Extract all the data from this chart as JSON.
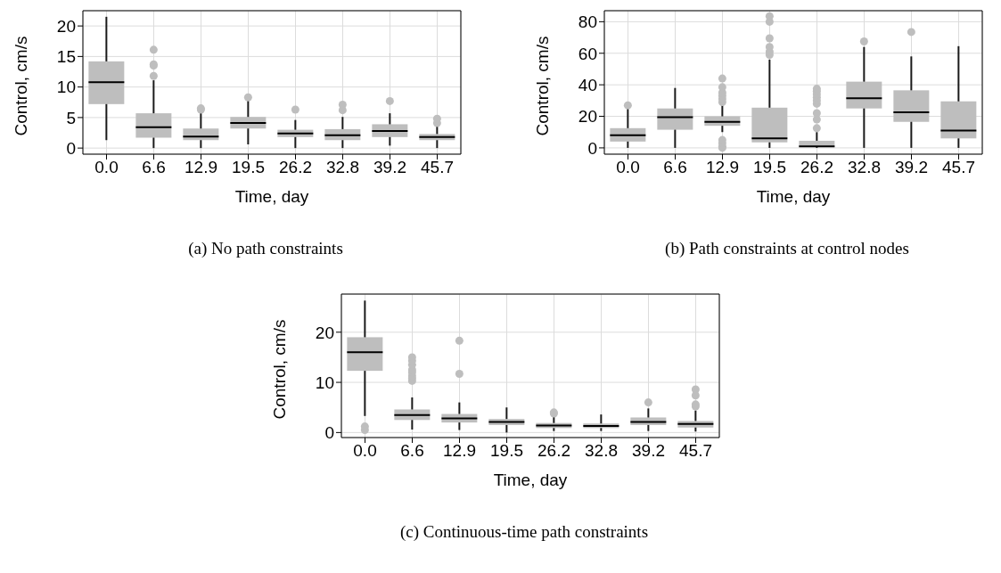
{
  "chart_data": [
    {
      "type": "box",
      "xlabel": "Time, day",
      "ylabel": "Control, cm/s",
      "annotations": [
        "(a) No path constraints"
      ],
      "categories": [
        "0.0",
        "6.6",
        "12.9",
        "19.5",
        "26.2",
        "32.8",
        "39.2",
        "45.7"
      ],
      "color": "#bebebe",
      "grid": true,
      "ylim": [
        -1,
        22.5
      ],
      "yticks": [
        0,
        5,
        10,
        15,
        20
      ],
      "boxes": [
        {
          "low": 1.3,
          "q1": 7.2,
          "median": 10.8,
          "q3": 14.2,
          "high": 21.5
        },
        {
          "low": 0,
          "q1": 1.7,
          "median": 3.4,
          "q3": 5.7,
          "high": 11.1,
          "outliers": [
            11.8,
            13.5,
            13.7,
            16.1
          ]
        },
        {
          "low": 0,
          "q1": 1.3,
          "median": 1.9,
          "q3": 3.2,
          "high": 6.0,
          "outliers": [
            6.3,
            6.5
          ]
        },
        {
          "low": 0.6,
          "q1": 3.2,
          "median": 4.1,
          "q3": 5.1,
          "high": 7.8,
          "outliers": [
            8.3
          ]
        },
        {
          "low": 0,
          "q1": 1.8,
          "median": 2.4,
          "q3": 3.0,
          "high": 4.6,
          "outliers": [
            6.3
          ]
        },
        {
          "low": 0,
          "q1": 1.3,
          "median": 2.1,
          "q3": 3.1,
          "high": 5.1,
          "outliers": [
            6.2,
            7.1
          ]
        },
        {
          "low": 0.4,
          "q1": 1.8,
          "median": 2.8,
          "q3": 3.9,
          "high": 5.7,
          "outliers": [
            7.7
          ]
        },
        {
          "low": 0,
          "q1": 1.3,
          "median": 1.8,
          "q3": 2.3,
          "high": 3.9,
          "outliers": [
            4.1,
            4.8
          ]
        }
      ]
    },
    {
      "type": "box",
      "xlabel": "Time, day",
      "ylabel": "Control, cm/s",
      "annotations": [
        "(b) Path constraints at control nodes"
      ],
      "categories": [
        "0.0",
        "6.6",
        "12.9",
        "19.5",
        "26.2",
        "32.8",
        "39.2",
        "45.7"
      ],
      "color": "#bebebe",
      "grid": true,
      "ylim": [
        -4,
        87
      ],
      "yticks": [
        0,
        20,
        40,
        60,
        80
      ],
      "boxes": [
        {
          "low": 0,
          "q1": 4,
          "median": 8,
          "q3": 12.5,
          "high": 26,
          "outliers": [
            27
          ]
        },
        {
          "low": 0,
          "q1": 11.5,
          "median": 19.5,
          "q3": 25,
          "high": 38
        },
        {
          "low": 10,
          "q1": 14,
          "median": 16.5,
          "q3": 20,
          "high": 27,
          "outliers": [
            0,
            1,
            3,
            5,
            29,
            31,
            33,
            35,
            38.5,
            44
          ]
        },
        {
          "low": 0,
          "q1": 3.5,
          "median": 6,
          "q3": 25.5,
          "high": 56,
          "outliers": [
            59,
            61,
            64,
            69.5,
            80,
            83.5
          ]
        },
        {
          "low": 0,
          "q1": 0.5,
          "median": 1,
          "q3": 4.5,
          "high": 10,
          "outliers": [
            12.5,
            18,
            22,
            28,
            30,
            32,
            34,
            36,
            37.5
          ]
        },
        {
          "low": 0,
          "q1": 25,
          "median": 31.5,
          "q3": 42,
          "high": 64,
          "outliers": [
            67.5
          ]
        },
        {
          "low": 0,
          "q1": 16.5,
          "median": 22.5,
          "q3": 36.5,
          "high": 58,
          "outliers": [
            73.5
          ]
        },
        {
          "low": 0,
          "q1": 6,
          "median": 11,
          "q3": 29.5,
          "high": 64.5
        }
      ]
    },
    {
      "type": "box",
      "xlabel": "Time, day",
      "ylabel": "Control, cm/s",
      "annotations": [
        "(c) Continuous-time path constraints"
      ],
      "categories": [
        "0.0",
        "6.6",
        "12.9",
        "19.5",
        "26.2",
        "32.8",
        "39.2",
        "45.7"
      ],
      "color": "#bebebe",
      "grid": true,
      "ylim": [
        -1,
        27.6
      ],
      "yticks": [
        0,
        10,
        20
      ],
      "boxes": [
        {
          "low": 3.3,
          "q1": 12.3,
          "median": 16,
          "q3": 19,
          "high": 26.3,
          "outliers": [
            0.5,
            1.2
          ]
        },
        {
          "low": 0.6,
          "q1": 2.5,
          "median": 3.5,
          "q3": 4.6,
          "high": 7,
          "outliers": [
            10.3,
            10.8,
            11.3,
            12,
            12.5,
            13.5,
            14.3,
            15
          ]
        },
        {
          "low": 0.5,
          "q1": 2.0,
          "median": 2.8,
          "q3": 3.7,
          "high": 6,
          "outliers": [
            11.7,
            18.3
          ]
        },
        {
          "low": 0,
          "q1": 1.5,
          "median": 2.1,
          "q3": 2.7,
          "high": 5
        },
        {
          "low": 0.3,
          "q1": 0.9,
          "median": 1.4,
          "q3": 1.9,
          "high": 3.6,
          "outliers": [
            3.8,
            4
          ]
        },
        {
          "low": 0.3,
          "q1": 0.9,
          "median": 1.3,
          "q3": 1.8,
          "high": 3.6
        },
        {
          "low": 0.3,
          "q1": 1.5,
          "median": 2.1,
          "q3": 3,
          "high": 4.8,
          "outliers": [
            6
          ]
        },
        {
          "low": 0.2,
          "q1": 1,
          "median": 1.7,
          "q3": 2.3,
          "high": 4.4,
          "outliers": [
            5.2,
            5.6,
            7.4,
            8.6
          ]
        }
      ]
    }
  ]
}
